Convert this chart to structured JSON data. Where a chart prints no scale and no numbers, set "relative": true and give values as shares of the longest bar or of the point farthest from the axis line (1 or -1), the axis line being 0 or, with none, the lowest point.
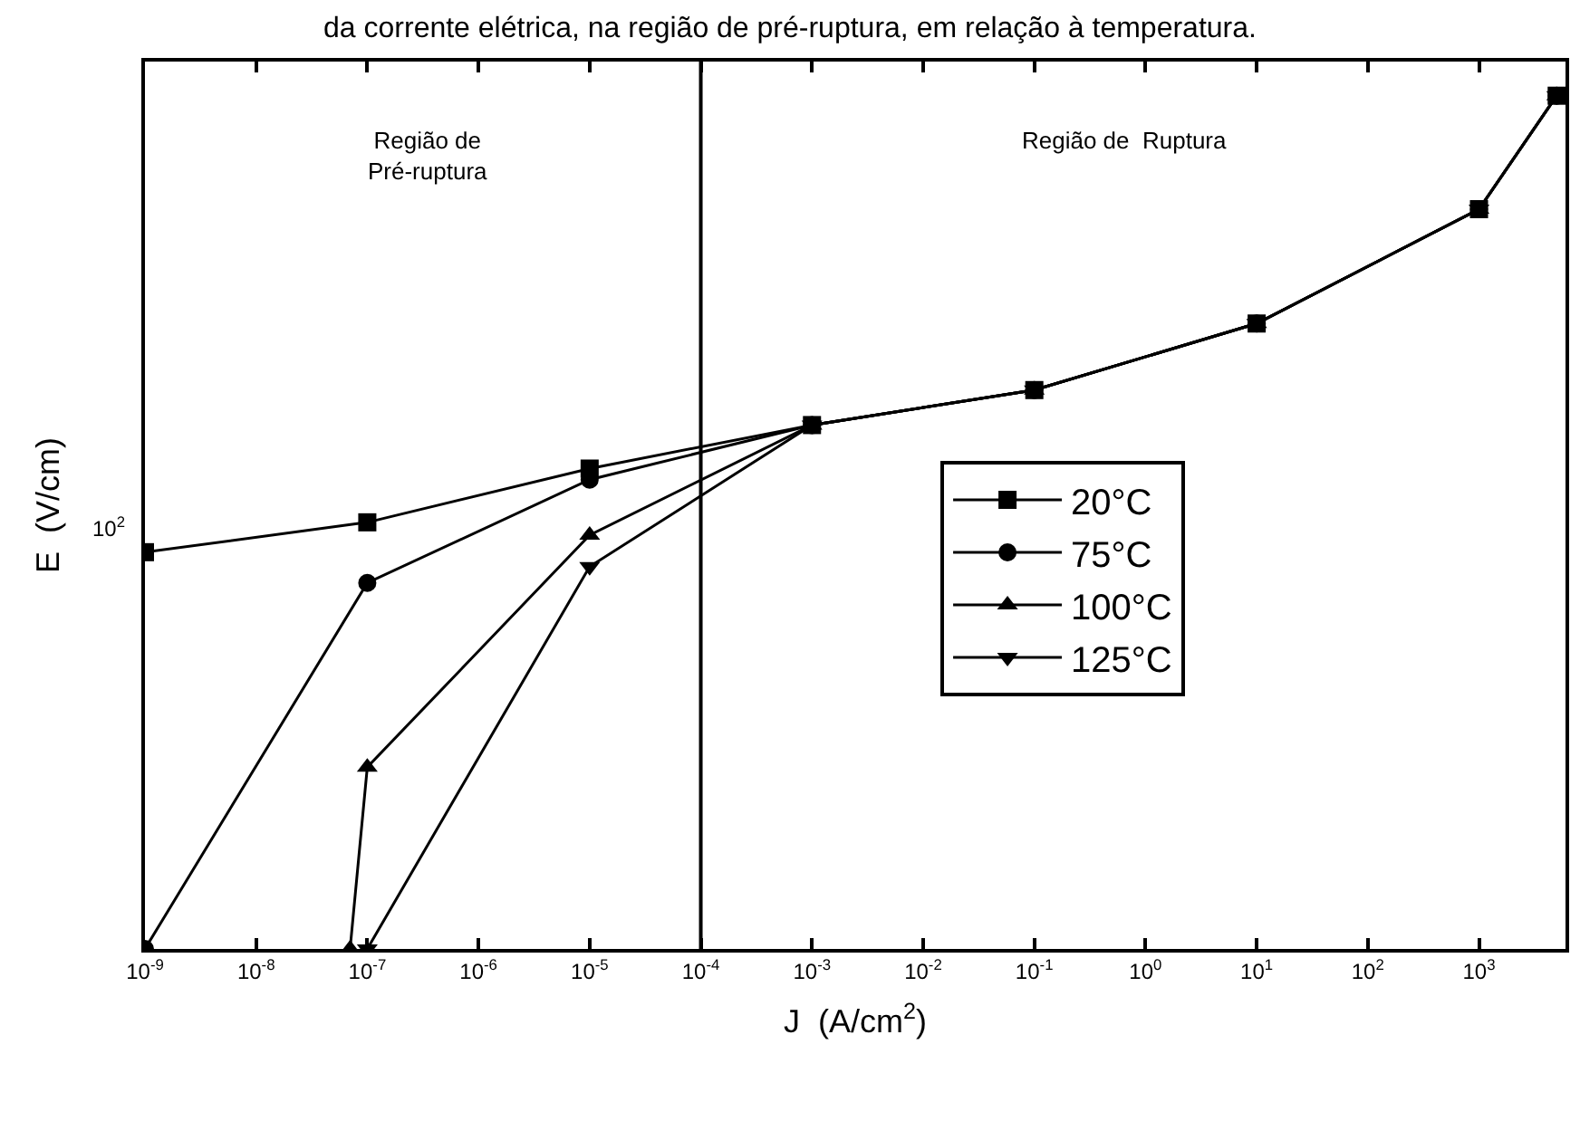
{
  "chart_data": {
    "type": "line",
    "title": "da corrente elétrica, na região de pré-ruptura, em relação à temperatura.",
    "xlabel": "J  (A/cm$^{2}$)",
    "ylabel": "E  (V/cm)",
    "log": "x",
    "relative": true,
    "grid": false,
    "legend": "right",
    "line_style": "solid",
    "xlim": [
      1e-09,
      6000
    ],
    "xticks": [
      {
        "value": 1e-09,
        "label": "10$^{-9}$"
      },
      {
        "value": 1e-08,
        "label": "10$^{-8}$"
      },
      {
        "value": 1e-07,
        "label": "10$^{-7}$"
      },
      {
        "value": 1e-06,
        "label": "10$^{-6}$"
      },
      {
        "value": 1e-05,
        "label": "10$^{-5}$"
      },
      {
        "value": 0.0001,
        "label": "10$^{-4}$"
      },
      {
        "value": 0.001,
        "label": "10$^{-3}$"
      },
      {
        "value": 0.01,
        "label": "10$^{-2}$"
      },
      {
        "value": 0.1,
        "label": "10$^{-1}$"
      },
      {
        "value": 1,
        "label": "10$^{0}$"
      },
      {
        "value": 10,
        "label": "10$^{1}$"
      },
      {
        "value": 100,
        "label": "10$^{2}$"
      },
      {
        "value": 1000,
        "label": "10$^{3}$"
      }
    ],
    "ref_lines": [
      {
        "axis": "x",
        "value": 0.0001,
        "color": "#000000",
        "line_style": "solid"
      }
    ],
    "annotations": [
      "Região de\nPré-ruptura",
      "Região de  Ruptura",
      "10$^{2}$"
    ],
    "series": [
      {
        "name": "20°C",
        "color": "#000000",
        "marker": "square",
        "x": [
          1e-09,
          1e-07,
          1e-05,
          0.001,
          0.1,
          10,
          1000,
          5000
        ],
        "values": [
          0.465,
          0.5,
          0.563,
          0.614,
          0.655,
          0.733,
          0.867,
          1
        ]
      },
      {
        "name": "75°C",
        "color": "#000000",
        "marker": "circle",
        "x": [
          1e-09,
          1e-07,
          1e-05,
          0.001,
          0.1,
          10,
          1000,
          5000
        ],
        "values": [
          0,
          0.429,
          0.55,
          0.614,
          0.655,
          0.733,
          0.867,
          1
        ]
      },
      {
        "name": "100°C",
        "color": "#000000",
        "marker": "triangle",
        "x": [
          7e-08,
          1e-07,
          1e-05,
          0.001,
          0.1,
          10,
          1000,
          5000
        ],
        "values": [
          0,
          0.213,
          0.485,
          0.614,
          0.655,
          0.733,
          0.867,
          1
        ]
      },
      {
        "name": "125°C",
        "color": "#000000",
        "marker": "triangle-down",
        "x": [
          1e-07,
          1e-05,
          0.001,
          0.1,
          10,
          1000,
          5000
        ],
        "values": [
          0,
          0.448,
          0.614,
          0.655,
          0.733,
          0.867,
          1
        ]
      }
    ]
  }
}
